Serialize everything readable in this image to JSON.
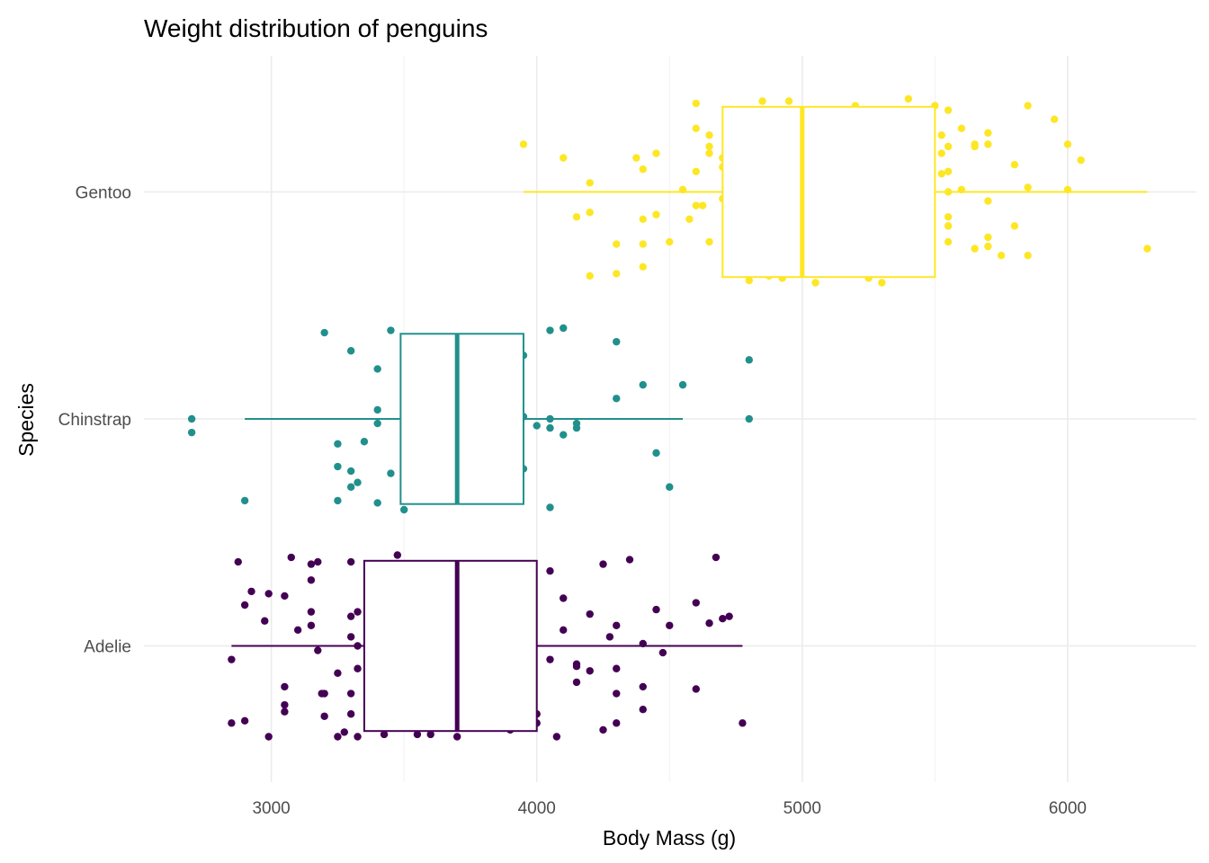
{
  "chart_data": {
    "type": "boxplot",
    "title": "Weight distribution of penguins",
    "xlabel": "Body Mass (g)",
    "ylabel": "Species",
    "xlim": [
      2520,
      6485
    ],
    "x_ticks": [
      3000,
      4000,
      5000,
      6000
    ],
    "x_tick_labels": [
      "3000",
      "4000",
      "5000",
      "6000"
    ],
    "x_minor_ticks": [
      3500,
      4500,
      5500
    ],
    "grid": true,
    "legend": "none",
    "categories": [
      "Adelie",
      "Chinstrap",
      "Gentoo"
    ],
    "series": [
      {
        "name": "Adelie",
        "color": "#440154",
        "box": {
          "whisker_low": 2850,
          "q1": 3350,
          "median": 3700,
          "q3": 4000,
          "whisker_high": 4775
        },
        "points": [
          [
            2875,
            0.37
          ],
          [
            3075,
            0.39
          ],
          [
            3150,
            0.36
          ],
          [
            3175,
            0.37
          ],
          [
            3300,
            0.37
          ],
          [
            3475,
            0.4
          ],
          [
            3150,
            0.29
          ],
          [
            2925,
            0.24
          ],
          [
            2990,
            0.23
          ],
          [
            3050,
            0.22
          ],
          [
            2900,
            0.18
          ],
          [
            2975,
            0.11
          ],
          [
            3150,
            0.15
          ],
          [
            3300,
            0.13
          ],
          [
            3325,
            0.15
          ],
          [
            3100,
            0.07
          ],
          [
            3150,
            0.09
          ],
          [
            3175,
            -0.02
          ],
          [
            3300,
            0.04
          ],
          [
            3325,
            0.0
          ],
          [
            2850,
            -0.06
          ],
          [
            3250,
            -0.12
          ],
          [
            3325,
            -0.1
          ],
          [
            3050,
            -0.18
          ],
          [
            3200,
            -0.21
          ],
          [
            3190,
            -0.21
          ],
          [
            3300,
            -0.21
          ],
          [
            3050,
            -0.26
          ],
          [
            3050,
            -0.29
          ],
          [
            3200,
            -0.31
          ],
          [
            3300,
            -0.3
          ],
          [
            3275,
            -0.38
          ],
          [
            2850,
            -0.34
          ],
          [
            2900,
            -0.33
          ],
          [
            2990,
            -0.4
          ],
          [
            3250,
            -0.4
          ],
          [
            3325,
            -0.4
          ],
          [
            3425,
            -0.39
          ],
          [
            3550,
            -0.39
          ],
          [
            3600,
            -0.39
          ],
          [
            3700,
            -0.4
          ],
          [
            3900,
            -0.37
          ],
          [
            4000,
            -0.3
          ],
          [
            4000,
            -0.34
          ],
          [
            4075,
            -0.4
          ],
          [
            4050,
            0.33
          ],
          [
            4250,
            0.36
          ],
          [
            4350,
            0.38
          ],
          [
            4675,
            0.39
          ],
          [
            4100,
            0.21
          ],
          [
            4200,
            0.14
          ],
          [
            4300,
            0.09
          ],
          [
            4450,
            0.16
          ],
          [
            4500,
            0.09
          ],
          [
            4600,
            0.19
          ],
          [
            4650,
            0.1
          ],
          [
            4700,
            0.12
          ],
          [
            4725,
            0.13
          ],
          [
            4100,
            0.07
          ],
          [
            4275,
            0.04
          ],
          [
            4400,
            0.01
          ],
          [
            4475,
            -0.03
          ],
          [
            4050,
            -0.06
          ],
          [
            4150,
            -0.08
          ],
          [
            4150,
            -0.09
          ],
          [
            4200,
            -0.11
          ],
          [
            4300,
            -0.1
          ],
          [
            4400,
            -0.18
          ],
          [
            4600,
            -0.19
          ],
          [
            4150,
            -0.16
          ],
          [
            4300,
            -0.21
          ],
          [
            4400,
            -0.28
          ],
          [
            4300,
            -0.34
          ],
          [
            4250,
            -0.37
          ],
          [
            4775,
            -0.34
          ]
        ]
      },
      {
        "name": "Chinstrap",
        "color": "#21908C",
        "box": {
          "whisker_low": 2900,
          "q1": 3487,
          "median": 3700,
          "q3": 3950,
          "whisker_high": 4550
        },
        "points": [
          [
            2700,
            0.0
          ],
          [
            2700,
            -0.06
          ],
          [
            2900,
            -0.36
          ],
          [
            3200,
            0.38
          ],
          [
            3300,
            0.3
          ],
          [
            3400,
            0.22
          ],
          [
            3450,
            0.39
          ],
          [
            3400,
            0.04
          ],
          [
            3400,
            -0.02
          ],
          [
            3250,
            -0.11
          ],
          [
            3350,
            -0.1
          ],
          [
            3250,
            -0.21
          ],
          [
            3300,
            -0.23
          ],
          [
            3325,
            -0.28
          ],
          [
            3300,
            -0.3
          ],
          [
            3250,
            -0.36
          ],
          [
            3400,
            -0.37
          ],
          [
            3450,
            -0.24
          ],
          [
            3500,
            -0.4
          ],
          [
            3950,
            0.28
          ],
          [
            3950,
            0.01
          ],
          [
            3950,
            -0.22
          ],
          [
            4050,
            -0.39
          ],
          [
            4050,
            0.39
          ],
          [
            4100,
            0.4
          ],
          [
            4300,
            0.34
          ],
          [
            4050,
            0.0
          ],
          [
            4000,
            -0.03
          ],
          [
            4050,
            -0.04
          ],
          [
            4100,
            -0.07
          ],
          [
            4150,
            -0.02
          ],
          [
            4150,
            -0.04
          ],
          [
            4300,
            0.09
          ],
          [
            4400,
            0.15
          ],
          [
            4550,
            0.15
          ],
          [
            4450,
            -0.15
          ],
          [
            4500,
            -0.3
          ],
          [
            4800,
            0.26
          ],
          [
            4800,
            0.0
          ]
        ]
      },
      {
        "name": "Gentoo",
        "color": "#FDE725",
        "box": {
          "whisker_low": 3950,
          "q1": 4700,
          "median": 5000,
          "q3": 5500,
          "whisker_high": 6300
        },
        "points": [
          [
            3950,
            0.21
          ],
          [
            4100,
            0.15
          ],
          [
            4200,
            0.04
          ],
          [
            4150,
            -0.11
          ],
          [
            4200,
            -0.09
          ],
          [
            4200,
            -0.37
          ],
          [
            4300,
            -0.23
          ],
          [
            4300,
            -0.36
          ],
          [
            4375,
            0.15
          ],
          [
            4400,
            0.1
          ],
          [
            4450,
            0.17
          ],
          [
            4400,
            -0.12
          ],
          [
            4450,
            -0.1
          ],
          [
            4400,
            -0.23
          ],
          [
            4400,
            -0.33
          ],
          [
            4500,
            -0.22
          ],
          [
            4550,
            0.01
          ],
          [
            4575,
            -0.12
          ],
          [
            4600,
            0.09
          ],
          [
            4600,
            0.39
          ],
          [
            4600,
            0.28
          ],
          [
            4650,
            0.25
          ],
          [
            4650,
            0.2
          ],
          [
            4650,
            0.17
          ],
          [
            4600,
            -0.06
          ],
          [
            4625,
            -0.06
          ],
          [
            4650,
            -0.22
          ],
          [
            4700,
            0.15
          ],
          [
            4700,
            0.11
          ],
          [
            4700,
            -0.03
          ],
          [
            4850,
            0.4
          ],
          [
            4950,
            0.4
          ],
          [
            4800,
            -0.39
          ],
          [
            4875,
            -0.37
          ],
          [
            4925,
            -0.38
          ],
          [
            5050,
            -0.4
          ],
          [
            5200,
            0.38
          ],
          [
            5250,
            -0.38
          ],
          [
            5300,
            -0.4
          ],
          [
            5400,
            0.41
          ],
          [
            5500,
            0.38
          ],
          [
            5550,
            0.36
          ],
          [
            5525,
            0.25
          ],
          [
            5525,
            0.17
          ],
          [
            5550,
            0.09
          ],
          [
            5550,
            0.0
          ],
          [
            5525,
            0.08
          ],
          [
            5550,
            0.2
          ],
          [
            5600,
            0.28
          ],
          [
            5600,
            0.01
          ],
          [
            5650,
            0.2
          ],
          [
            5650,
            0.21
          ],
          [
            5700,
            0.26
          ],
          [
            5700,
            0.21
          ],
          [
            5550,
            -0.15
          ],
          [
            5550,
            -0.22
          ],
          [
            5550,
            -0.11
          ],
          [
            5700,
            -0.04
          ],
          [
            5700,
            -0.2
          ],
          [
            5700,
            -0.24
          ],
          [
            5650,
            -0.25
          ],
          [
            5750,
            -0.28
          ],
          [
            5800,
            0.12
          ],
          [
            5800,
            -0.15
          ],
          [
            5850,
            0.38
          ],
          [
            5850,
            0.02
          ],
          [
            5850,
            -0.28
          ],
          [
            5950,
            0.32
          ],
          [
            6000,
            0.21
          ],
          [
            6000,
            0.01
          ],
          [
            6050,
            0.14
          ],
          [
            6300,
            -0.25
          ]
        ]
      }
    ]
  }
}
